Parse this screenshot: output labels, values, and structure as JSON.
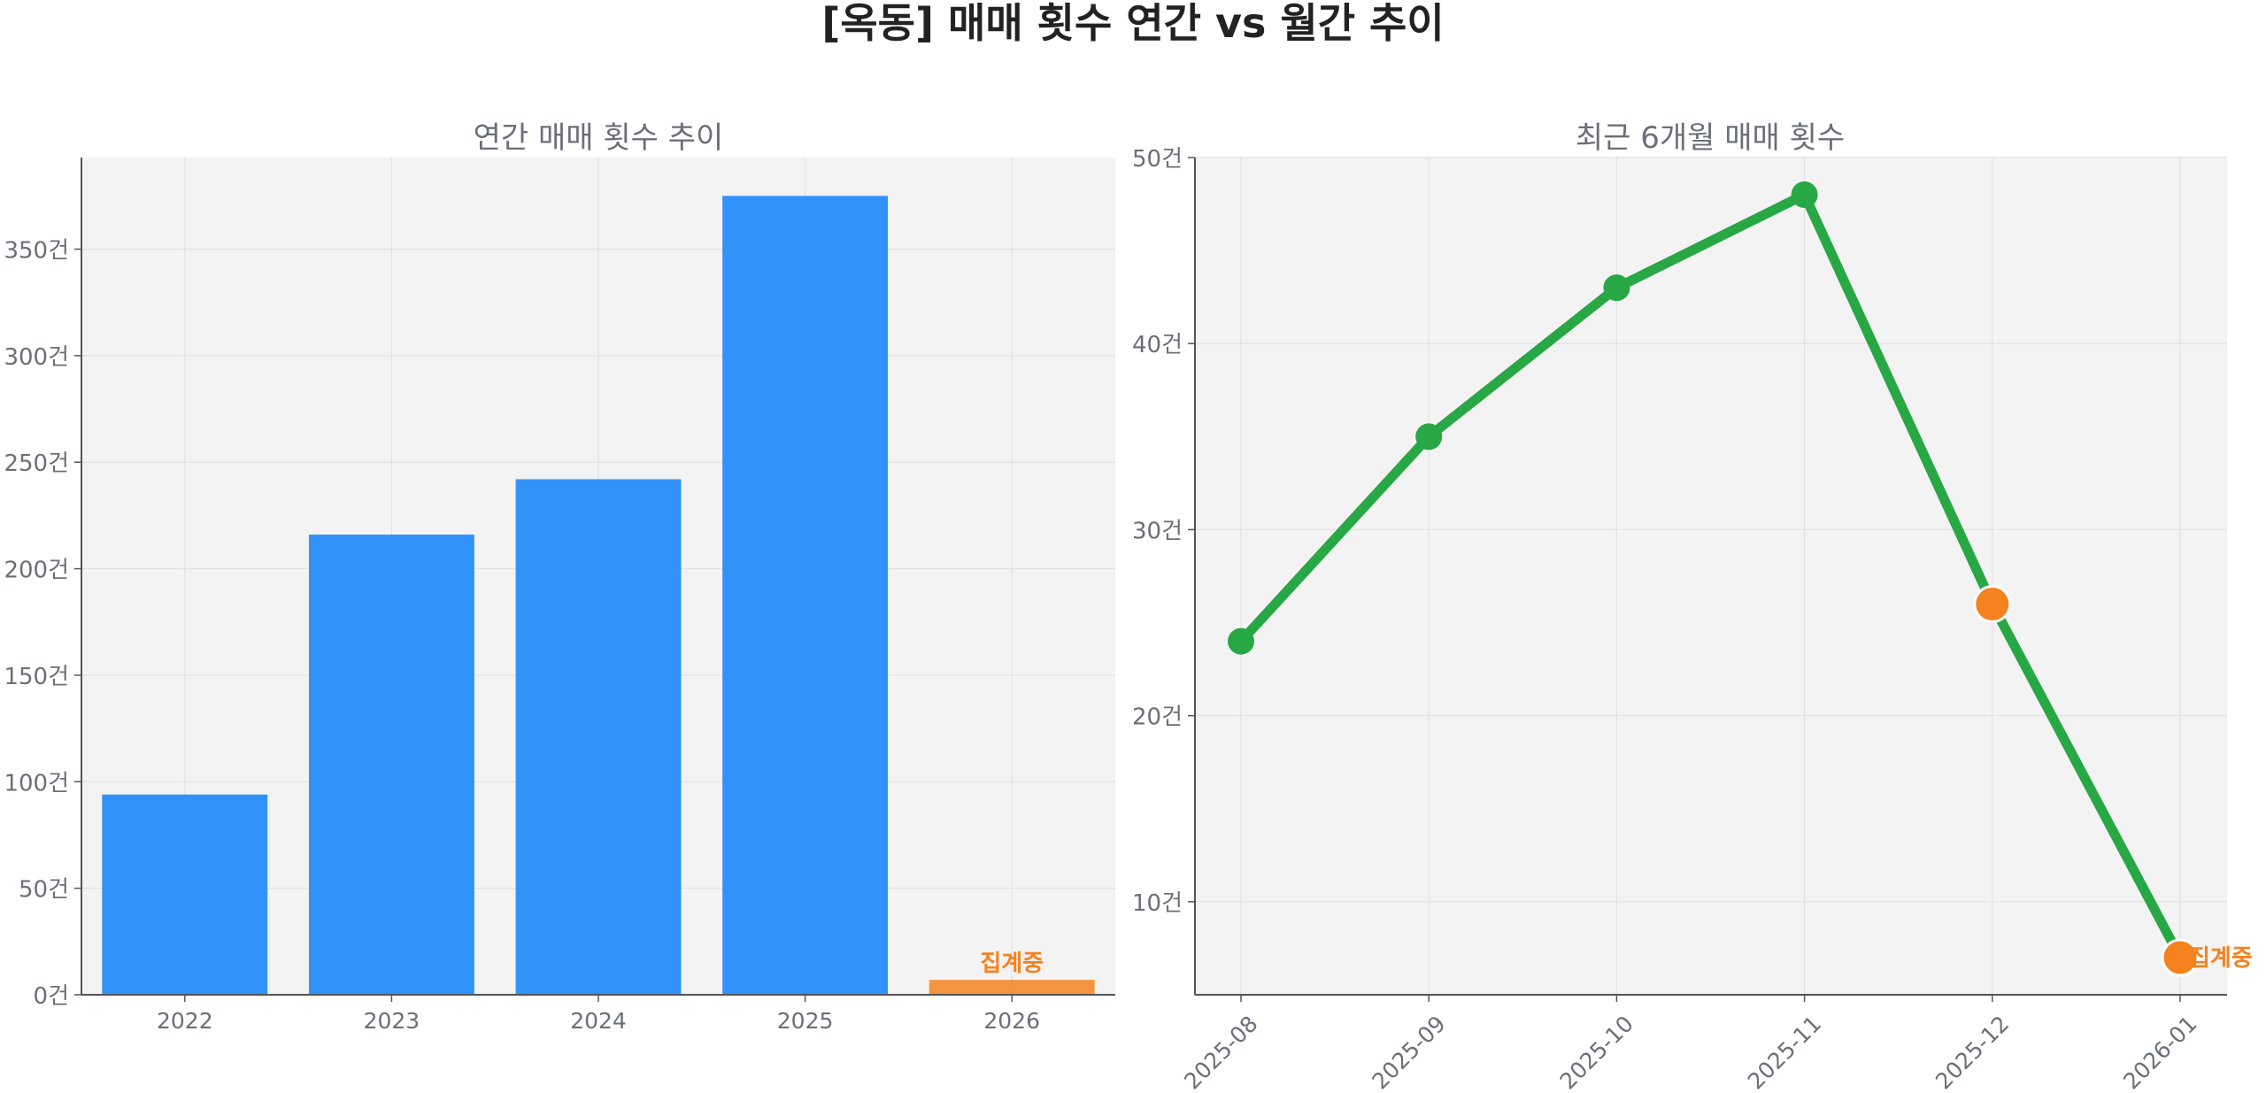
{
  "figure": {
    "title": "[옥동] 매매 횟수 연간 vs 월간 추이",
    "colors": {
      "plot_bg": "#f3f3f3",
      "grid": "#e2e2e2",
      "axis": "#555555",
      "text": "#6b6f78",
      "title": "#222222",
      "bar": "#3192fa",
      "accent": "#f5821f",
      "line": "#28a745"
    }
  },
  "chart_data": [
    {
      "type": "bar",
      "title": "연간 매매 횟수 추이",
      "categories": [
        "2022",
        "2023",
        "2024",
        "2025",
        "2026"
      ],
      "values": [
        94,
        216,
        242,
        375,
        7
      ],
      "ylim": [
        0,
        393
      ],
      "yticks": [
        0,
        50,
        100,
        150,
        200,
        250,
        300,
        350
      ],
      "ytick_suffix": "건",
      "highlight": {
        "index": 4,
        "label": "집계중"
      },
      "grid": true
    },
    {
      "type": "line",
      "title": "최근 6개월 매매 횟수",
      "x": [
        "2025-08",
        "2025-09",
        "2025-10",
        "2025-11",
        "2025-12",
        "2026-01"
      ],
      "values": [
        24,
        35,
        43,
        48,
        26,
        7
      ],
      "ylim": [
        5,
        50
      ],
      "yticks": [
        10,
        20,
        30,
        40,
        50
      ],
      "ytick_suffix": "건",
      "highlight_points": [
        4,
        5
      ],
      "end_label": "집계중",
      "grid": true
    }
  ]
}
